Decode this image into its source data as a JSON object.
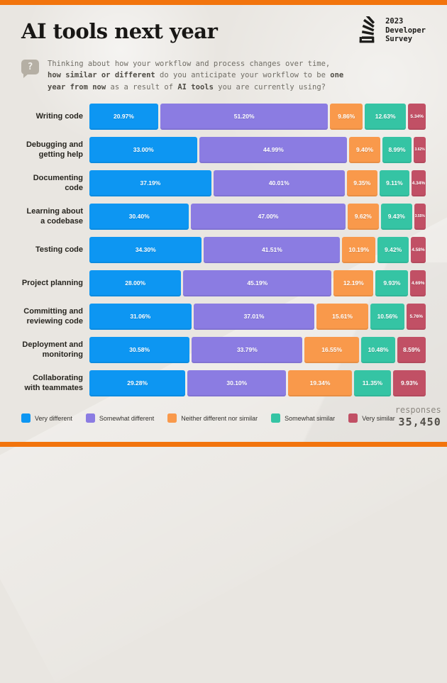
{
  "page": {
    "background_color": "#E9E6E1",
    "accent_strip_color": "#F2740D"
  },
  "header": {
    "title": "AI tools next year",
    "logo": {
      "icon": "stackoverflow-logo-icon",
      "year": "2023",
      "name_line1": "Developer",
      "name_line2": "Survey"
    }
  },
  "question": {
    "icon": "question-bubble-icon",
    "icon_glyph": "?",
    "lines": [
      [
        {
          "text": "Thinking about how your workflow and process changes over time,",
          "bold": false
        }
      ],
      [
        {
          "text": "how similar or different",
          "bold": true
        },
        {
          "text": " do you anticipate your workflow to be ",
          "bold": false
        },
        {
          "text": "one",
          "bold": true
        }
      ],
      [
        {
          "text": "year from now",
          "bold": true
        },
        {
          "text": " as a result of ",
          "bold": false
        },
        {
          "text": "AI tools",
          "bold": true
        },
        {
          "text": " you are currently using?",
          "bold": false
        }
      ]
    ]
  },
  "chart_data": {
    "type": "bar",
    "orientation": "horizontal",
    "stacked": true,
    "unit": "percent",
    "xlim": [
      0,
      100
    ],
    "value_label_format": "XX.XX%",
    "legend_position": "bottom",
    "categories": [
      "Writing code",
      "Debugging and getting help",
      "Documenting code",
      "Learning about a codebase",
      "Testing code",
      "Project planning",
      "Committing and reviewing code",
      "Deployment and monitoring",
      "Collaborating with teammates"
    ],
    "series": [
      {
        "name": "Very different",
        "color": "#0D96F2",
        "values": [
          20.97,
          33.0,
          37.19,
          30.4,
          34.3,
          28.0,
          31.06,
          30.58,
          29.28
        ]
      },
      {
        "name": "Somewhat different",
        "color": "#8B7CE2",
        "values": [
          51.2,
          44.99,
          40.01,
          47.0,
          41.51,
          45.19,
          37.01,
          33.79,
          30.1
        ]
      },
      {
        "name": "Neither different nor similar",
        "color": "#F9994B",
        "values": [
          9.86,
          9.4,
          9.35,
          9.62,
          10.19,
          12.19,
          15.61,
          16.55,
          19.34
        ]
      },
      {
        "name": "Somewhat similar",
        "color": "#35C4A4",
        "values": [
          12.63,
          8.99,
          9.11,
          9.43,
          9.42,
          9.93,
          10.56,
          10.48,
          11.35
        ]
      },
      {
        "name": "Very similar",
        "color": "#C15065",
        "values": [
          5.34,
          3.62,
          4.34,
          3.55,
          4.58,
          4.69,
          5.76,
          8.59,
          9.93
        ]
      }
    ]
  },
  "footer": {
    "responses_label": "responses",
    "responses_value": "35,450"
  }
}
